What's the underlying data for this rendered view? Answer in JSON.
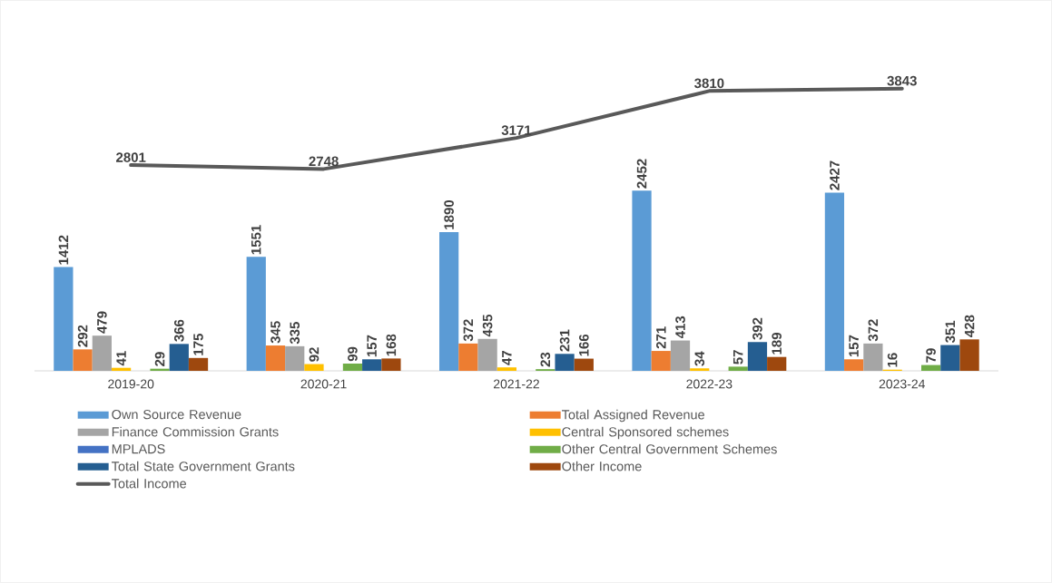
{
  "chart_data": {
    "type": "bar",
    "categories": [
      "2019-20",
      "2020-21",
      "2021-22",
      "2022-23",
      "2023-24"
    ],
    "series": [
      {
        "name": "Own Source Revenue",
        "color": "#5b9bd5",
        "values": [
          1412,
          1551,
          1890,
          2452,
          2427
        ]
      },
      {
        "name": "Total Assigned Revenue",
        "color": "#ed7d31",
        "values": [
          292,
          345,
          372,
          271,
          157
        ]
      },
      {
        "name": "Finance Commission Grants",
        "color": "#a5a5a5",
        "values": [
          479,
          335,
          435,
          413,
          372
        ]
      },
      {
        "name": "Central Sponsored schemes",
        "color": "#ffc000",
        "values": [
          41,
          92,
          47,
          34,
          16
        ]
      },
      {
        "name": "MPLADS",
        "color": "#4472c4",
        "values": [
          null,
          null,
          null,
          null,
          null
        ]
      },
      {
        "name": "Other Central Government Schemes",
        "color": "#70ad47",
        "values": [
          29,
          99,
          23,
          57,
          79
        ]
      },
      {
        "name": "Total State Government Grants",
        "color": "#255e91",
        "values": [
          366,
          157,
          231,
          392,
          351
        ]
      },
      {
        "name": "Other Income",
        "color": "#9e480e",
        "values": [
          175,
          168,
          166,
          189,
          428
        ]
      },
      {
        "name": "Total Income",
        "type": "line",
        "color": "#595959",
        "values": [
          2801,
          2748,
          3171,
          3810,
          3843
        ]
      }
    ],
    "data_labels": true,
    "legend": "bottom",
    "marker": "none",
    "line_style": "solid"
  }
}
